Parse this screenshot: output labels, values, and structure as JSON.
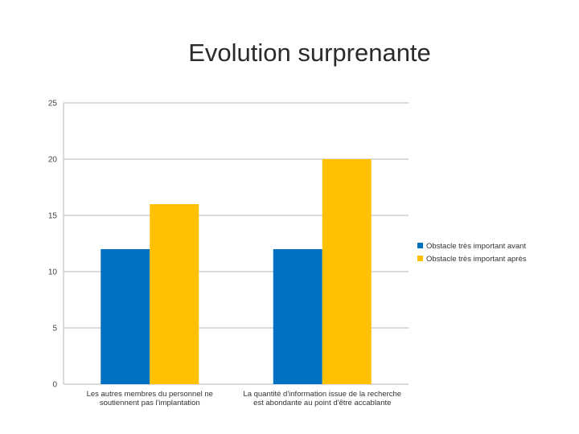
{
  "slide": {
    "title": "Evolution surprenante"
  },
  "colors": {
    "before": "#0070c0",
    "after": "#ffc000",
    "grid": "#b7b7b7"
  },
  "chart_data": {
    "type": "bar",
    "title": "",
    "xlabel": "",
    "ylabel": "",
    "ylim": [
      0,
      25
    ],
    "yticks": [
      0,
      5,
      10,
      15,
      20,
      25
    ],
    "grid": true,
    "legend_position": "right",
    "categories": [
      [
        "Les autres membres du personnel ne",
        "soutiennent pas l'implantation"
      ],
      [
        "La quantité d'information issue de la recherche",
        "est abondante au point d'être accablante"
      ]
    ],
    "series": [
      {
        "name": "Obstacle très important avant",
        "values": [
          12,
          12
        ]
      },
      {
        "name": "Obstacle très important après",
        "values": [
          16,
          20
        ]
      }
    ]
  }
}
